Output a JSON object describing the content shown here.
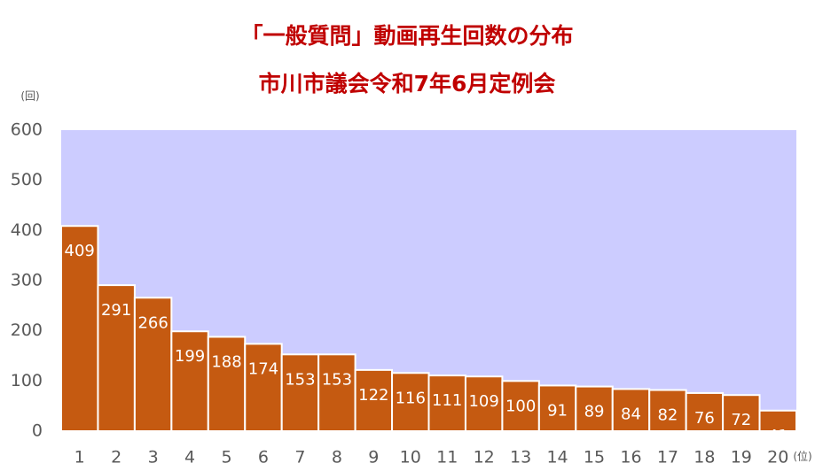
{
  "chart_data": {
    "type": "bar",
    "title": "「一般質問」動画再生回数の分布",
    "subtitle": "市川市議会令和7年6月定例会",
    "y_label": "(回)",
    "x_label": "(位)",
    "categories": [
      "1",
      "2",
      "3",
      "4",
      "5",
      "6",
      "7",
      "8",
      "9",
      "10",
      "11",
      "12",
      "13",
      "14",
      "15",
      "16",
      "17",
      "18",
      "19",
      "20"
    ],
    "values": [
      409,
      291,
      266,
      199,
      188,
      174,
      153,
      153,
      122,
      116,
      111,
      109,
      100,
      91,
      89,
      84,
      82,
      76,
      72,
      41
    ],
    "color": "#c55a11",
    "plot_background": "#ccccff",
    "ylim": [
      0,
      600
    ],
    "yticks": [
      0,
      100,
      200,
      300,
      400,
      500,
      600
    ],
    "grid": false
  }
}
